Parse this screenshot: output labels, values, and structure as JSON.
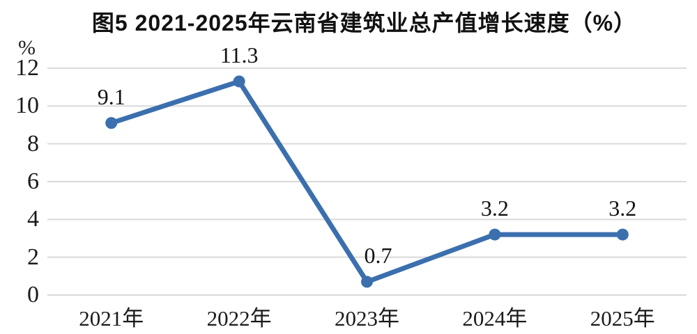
{
  "chart_data": {
    "type": "line",
    "title": "图5 2021-2025年云南省建筑业总产值增长速度（%）",
    "unit_label": "%",
    "categories": [
      "2021年",
      "2022年",
      "2023年",
      "2024年",
      "2025年"
    ],
    "values": [
      9.1,
      11.3,
      0.7,
      3.2,
      3.2
    ],
    "data_labels": [
      "9.1",
      "11.3",
      "0.7",
      "3.2",
      "3.2"
    ],
    "xlabel": "",
    "ylabel": "%",
    "ylim": [
      0,
      12
    ],
    "yticks": [
      0,
      2,
      4,
      6,
      8,
      10,
      12
    ],
    "grid": "horizontal",
    "legend": "none",
    "colors": {
      "line": "#3B6FAE",
      "marker": "#3B6FAE",
      "grid": "#D9D9D9",
      "text": "#1A1A1A",
      "background": "#FFFFFF"
    }
  }
}
